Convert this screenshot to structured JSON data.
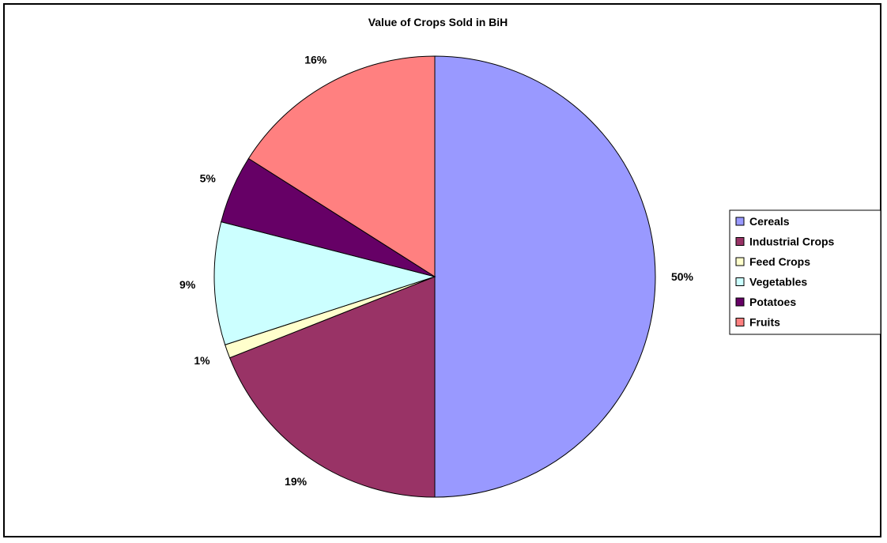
{
  "chart_data": {
    "type": "pie",
    "title": "Value of Crops Sold in BiH",
    "slices": [
      {
        "name": "Cereals",
        "value": 50,
        "label": "50%",
        "color": "#9999FF"
      },
      {
        "name": "Industrial Crops",
        "value": 19,
        "label": "19%",
        "color": "#993366"
      },
      {
        "name": "Feed Crops",
        "value": 1,
        "label": "1%",
        "color": "#FFFFCC"
      },
      {
        "name": "Vegetables",
        "value": 9,
        "label": "9%",
        "color": "#CCFFFF"
      },
      {
        "name": "Potatoes",
        "value": 5,
        "label": "5%",
        "color": "#660066"
      },
      {
        "name": "Fruits",
        "value": 16,
        "label": "16%",
        "color": "#FF8080"
      }
    ],
    "legend_position": "right"
  }
}
